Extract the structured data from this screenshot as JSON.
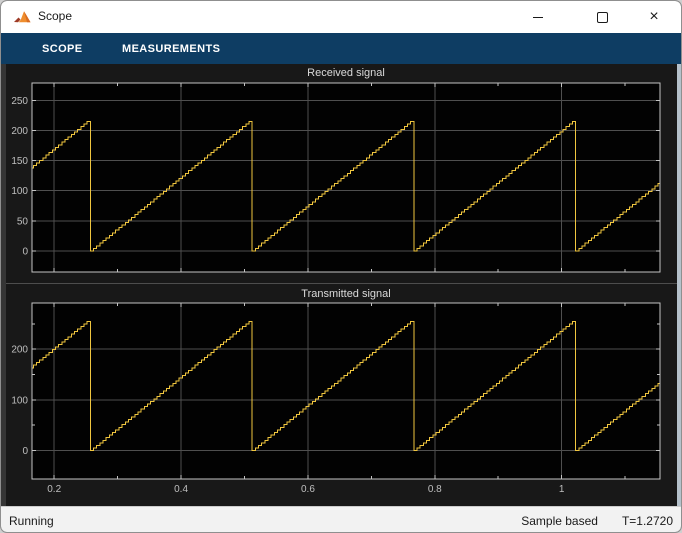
{
  "window": {
    "title": "Scope"
  },
  "toolbar": {
    "tabs": [
      {
        "label": "SCOPE"
      },
      {
        "label": "MEASUREMENTS"
      }
    ],
    "help_glyph": "?",
    "icons": [
      "collapse-toolbar-icon",
      "performance-settings-icon",
      "pause-icon",
      "step-forward-icon",
      "stop-icon",
      "help-icon",
      "undock-icon"
    ]
  },
  "status_bar": {
    "state": "Running",
    "sample_mode": "Sample based",
    "time": "T=1.2720"
  },
  "colors": {
    "toolbar_bg": "#0e3d63",
    "signal_yellow": "#f0c63f",
    "plot_bg": "#020202",
    "figure_bg": "#181818",
    "grid": "#4f4f4f",
    "axis_border": "#c4c4c4",
    "tick_label": "#bfbfbf",
    "title_text": "#dadada",
    "stop_red": "#f2938a",
    "run_green": "#74c27a",
    "pause_blue": "#a6c9e8"
  },
  "chart_data": [
    {
      "type": "line",
      "title": "Received signal",
      "xlim": [
        0.165,
        1.155
      ],
      "ylim": [
        -35,
        279
      ],
      "xticks": [
        0.2,
        0.4,
        0.6,
        0.8,
        1
      ],
      "xtick_labels": [
        "0.2",
        "0.4",
        "0.6",
        "0.8",
        "1"
      ],
      "xminor": [
        0.3,
        0.5,
        0.7,
        0.9,
        1.1
      ],
      "yticks": [
        0,
        50,
        100,
        150,
        200,
        250
      ],
      "ytick_labels": [
        "0",
        "50",
        "100",
        "150",
        "200",
        "250"
      ],
      "yminor": [],
      "grid": true,
      "show_xlabels": false,
      "signal": {
        "waveform": "staircase-sawtooth",
        "min": 0,
        "max": 215,
        "period": 0.255,
        "phase_offset": 0.002,
        "sample_time": 0.005,
        "drop_times": [
          0.257,
          0.512,
          0.767,
          1.022
        ]
      }
    },
    {
      "type": "line",
      "title": "Transmitted signal",
      "xlim": [
        0.165,
        1.155
      ],
      "ylim": [
        -56,
        291
      ],
      "xticks": [
        0.2,
        0.4,
        0.6,
        0.8,
        1
      ],
      "xtick_labels": [
        "0.2",
        "0.4",
        "0.6",
        "0.8",
        "1"
      ],
      "xminor": [
        0.3,
        0.5,
        0.7,
        0.9,
        1.1
      ],
      "yticks": [
        0,
        100,
        200
      ],
      "ytick_labels": [
        "0",
        "100",
        "200"
      ],
      "yminor": [
        50,
        150,
        250
      ],
      "grid": true,
      "show_xlabels": true,
      "signal": {
        "waveform": "staircase-sawtooth",
        "min": 0,
        "max": 255,
        "period": 0.255,
        "phase_offset": 0.002,
        "sample_time": 0.005,
        "drop_times": [
          0.257,
          0.512,
          0.767,
          1.022
        ]
      }
    }
  ]
}
